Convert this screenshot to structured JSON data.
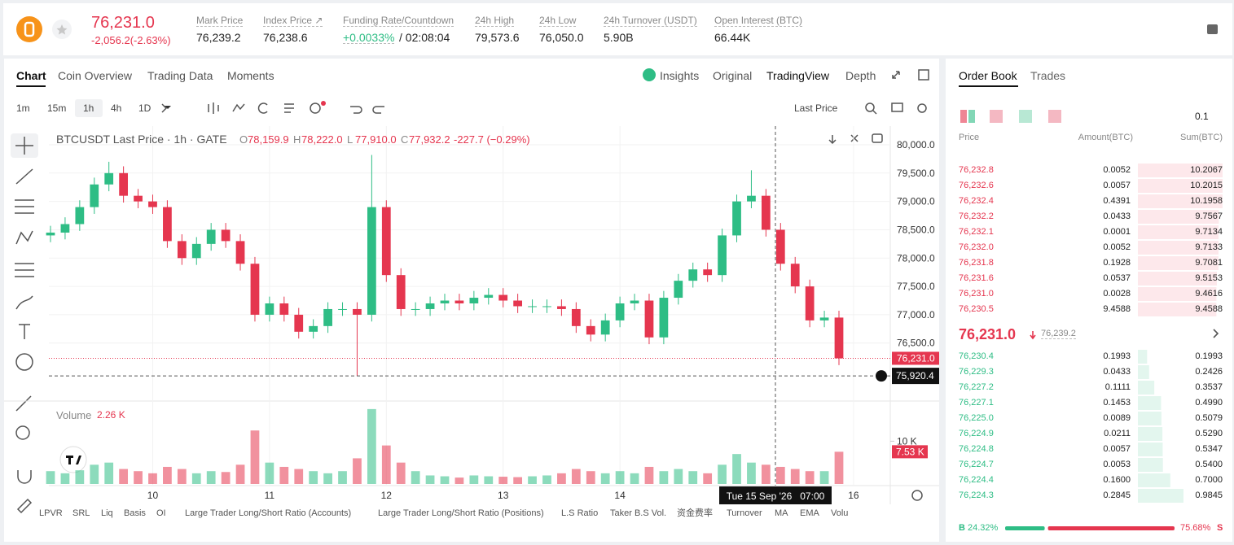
{
  "header": {
    "price": "76,231.0",
    "change": "-2,056.2(-2.63%)",
    "stats": [
      {
        "label": "Mark Price",
        "value": "76,239.2"
      },
      {
        "label": "Index Price ↗",
        "value": "76,238.6"
      },
      {
        "label": "Funding Rate/Countdown",
        "value": "+0.0033%",
        "countdown": "/ 02:08:04"
      },
      {
        "label": "24h High",
        "value": "79,573.6"
      },
      {
        "label": "24h Low",
        "value": "76,050.0"
      },
      {
        "label": "24h Turnover (USDT)",
        "value": "5.90B"
      },
      {
        "label": "Open Interest (BTC)",
        "value": "66.44K"
      }
    ]
  },
  "tabs": [
    "Chart",
    "Coin Overview",
    "Trading Data",
    "Moments"
  ],
  "view_tabs": [
    "Insights",
    "Original",
    "TradingView",
    "Depth"
  ],
  "intervals": [
    "1m",
    "15m",
    "1h",
    "4h",
    "1D"
  ],
  "price_source": "Last Price",
  "legend": {
    "title": "BTCUSDT Last Price · 1h · GATE",
    "ohlc": [
      {
        "key": "O",
        "value": "78,159.9"
      },
      {
        "key": "H",
        "value": "78,222.0"
      },
      {
        "key": "L",
        "value": "77,910.0"
      },
      {
        "key": "C",
        "value": "77,932.2"
      }
    ],
    "change": "-227.7 (−0.29%)"
  },
  "chart_data": {
    "type": "candlestick",
    "open": [
      78400,
      78450,
      78600,
      78900,
      79300,
      79500,
      79100,
      79000,
      78900,
      78300,
      78000,
      78250,
      78500,
      78300,
      77900,
      77000,
      77200,
      77000,
      76700,
      76800,
      77100,
      77100,
      77000,
      78900,
      77700,
      77100,
      77100,
      77200,
      77250,
      77200,
      77300,
      77350,
      77250,
      77150,
      77150,
      77150,
      77100,
      76800,
      76650,
      76900,
      77200,
      77250,
      76600,
      77300,
      77600,
      77800,
      77700,
      78400,
      79000,
      79100,
      78500,
      77900,
      77500,
      76900,
      76950
    ],
    "high": [
      78570,
      78720,
      79020,
      79420,
      79700,
      79620,
      79220,
      79120,
      79020,
      78420,
      78370,
      78620,
      78620,
      78420,
      78020,
      77320,
      77320,
      77120,
      76920,
      77220,
      77220,
      77220,
      79820,
      79020,
      77820,
      77220,
      77320,
      77370,
      77370,
      77420,
      77470,
      77470,
      77370,
      77270,
      77270,
      77270,
      77220,
      76920,
      77020,
      77320,
      77370,
      77370,
      77420,
      77720,
      77920,
      77920,
      78520,
      79120,
      79550,
      79220,
      78620,
      78020,
      77620,
      77070,
      77070
    ],
    "low": [
      78280,
      78330,
      78480,
      78780,
      79180,
      78980,
      78880,
      78780,
      78180,
      77880,
      77880,
      78130,
      78180,
      77780,
      76880,
      76880,
      76880,
      76580,
      76580,
      76680,
      76980,
      75920,
      76880,
      77580,
      76980,
      76980,
      76980,
      77080,
      77080,
      77080,
      77180,
      77130,
      77030,
      77030,
      77030,
      76980,
      76680,
      76530,
      76530,
      76780,
      77080,
      76480,
      76480,
      77180,
      77480,
      77580,
      77580,
      78280,
      78880,
      78380,
      77780,
      77380,
      76780,
      76780,
      76111
    ],
    "close": [
      78450,
      78600,
      78900,
      79300,
      79500,
      79100,
      79000,
      78900,
      78300,
      78000,
      78250,
      78500,
      78300,
      77900,
      77000,
      77200,
      77000,
      76700,
      76800,
      77100,
      77100,
      77000,
      78900,
      77700,
      77100,
      77100,
      77200,
      77250,
      77200,
      77300,
      77350,
      77250,
      77150,
      77150,
      77150,
      77100,
      76800,
      76650,
      76900,
      77200,
      77250,
      76600,
      77300,
      77600,
      77800,
      77700,
      78400,
      79000,
      79100,
      78500,
      77900,
      77500,
      76900,
      76950,
      76231
    ],
    "up_color": "#2ebd85",
    "down_color": "#e5364f",
    "xlim": [
      0,
      54
    ],
    "ylim": [
      75520,
      80330
    ],
    "yticks": [
      {
        "value": 80000,
        "label": "80,000.0"
      },
      {
        "value": 79500,
        "label": "79,500.0"
      },
      {
        "value": 79000,
        "label": "79,000.0"
      },
      {
        "value": 78500,
        "label": "78,500.0"
      },
      {
        "value": 78000,
        "label": "78,000.0"
      },
      {
        "value": 77500,
        "label": "77,500.0"
      },
      {
        "value": 77000,
        "label": "77,000.0"
      },
      {
        "value": 76500,
        "label": "76,500.0"
      }
    ],
    "xticks": [
      {
        "value": 7,
        "label": "10"
      },
      {
        "value": 15,
        "label": "11"
      },
      {
        "value": 23,
        "label": "12"
      },
      {
        "value": 31,
        "label": "13"
      },
      {
        "value": 39,
        "label": "14"
      },
      {
        "value": 55,
        "label": "16"
      }
    ],
    "grid": true,
    "last_price": {
      "value": 76231,
      "label": "76,231.0"
    },
    "crosshair": {
      "value": 75920.4,
      "label": "75,920.4",
      "time": "Tue 15 Sep '26   07:00"
    },
    "volume": {
      "name": "Volume",
      "current_label": "2.26 K",
      "values": [
        3000,
        2500,
        3200,
        4500,
        5000,
        3500,
        3000,
        2500,
        4000,
        3500,
        2500,
        3000,
        2800,
        4500,
        12500,
        5000,
        4000,
        3500,
        3000,
        2500,
        3000,
        6000,
        17500,
        9000,
        5000,
        3000,
        2000,
        1800,
        1500,
        2000,
        1800,
        1700,
        1600,
        1800,
        2000,
        2500,
        3500,
        3000,
        2500,
        3000,
        2500,
        4000,
        3000,
        3500,
        3000,
        2500,
        4500,
        7000,
        5000,
        4500,
        4000,
        3500,
        3000,
        3000,
        7530
      ],
      "value_labels_last": "7.53 K",
      "ylim": [
        0,
        19000
      ],
      "yticks": [
        {
          "value": 10000,
          "label": "10 K"
        }
      ]
    }
  },
  "indicators": [
    "LPVR",
    "SRL",
    "Liq",
    "Basis",
    "OI",
    "Large Trader Long/Short Ratio (Accounts)",
    "Large Trader Long/Short Ratio (Positions)",
    "L.S Ratio",
    "Taker B.S Vol.",
    "资金费率",
    "Turnover",
    "MA",
    "EMA",
    "Volu"
  ],
  "order_book": {
    "tabs": [
      "Order Book",
      "Trades"
    ],
    "precision": "0.1",
    "columns": [
      "Price",
      "Amount(BTC)",
      "Sum(BTC)"
    ],
    "asks": [
      [
        "76,232.8",
        "0.0052",
        "10.2067"
      ],
      [
        "76,232.6",
        "0.0057",
        "10.2015"
      ],
      [
        "76,232.4",
        "0.4391",
        "10.1958"
      ],
      [
        "76,232.2",
        "0.0433",
        "9.7567"
      ],
      [
        "76,232.1",
        "0.0001",
        "9.7134"
      ],
      [
        "76,232.0",
        "0.0052",
        "9.7133"
      ],
      [
        "76,231.8",
        "0.1928",
        "9.7081"
      ],
      [
        "76,231.6",
        "0.0537",
        "9.5153"
      ],
      [
        "76,231.0",
        "0.0028",
        "9.4616"
      ],
      [
        "76,230.5",
        "9.4588",
        "9.4588"
      ]
    ],
    "mid_price": "76,231.0",
    "mark_price": "76,239.2",
    "bids": [
      [
        "76,230.4",
        "0.1993",
        "0.1993"
      ],
      [
        "76,229.3",
        "0.0433",
        "0.2426"
      ],
      [
        "76,227.2",
        "0.1111",
        "0.3537"
      ],
      [
        "76,227.1",
        "0.1453",
        "0.4990"
      ],
      [
        "76,225.0",
        "0.0089",
        "0.5079"
      ],
      [
        "76,224.9",
        "0.0211",
        "0.5290"
      ],
      [
        "76,224.8",
        "0.0057",
        "0.5347"
      ],
      [
        "76,224.7",
        "0.0053",
        "0.5400"
      ],
      [
        "76,224.4",
        "0.1600",
        "0.7000"
      ],
      [
        "76,224.3",
        "0.2845",
        "0.9845"
      ]
    ],
    "ratio": {
      "labels": [
        "B",
        "S"
      ],
      "values": [
        24.32,
        75.68
      ],
      "value_labels": [
        "24.32%",
        "75.68%"
      ]
    }
  }
}
